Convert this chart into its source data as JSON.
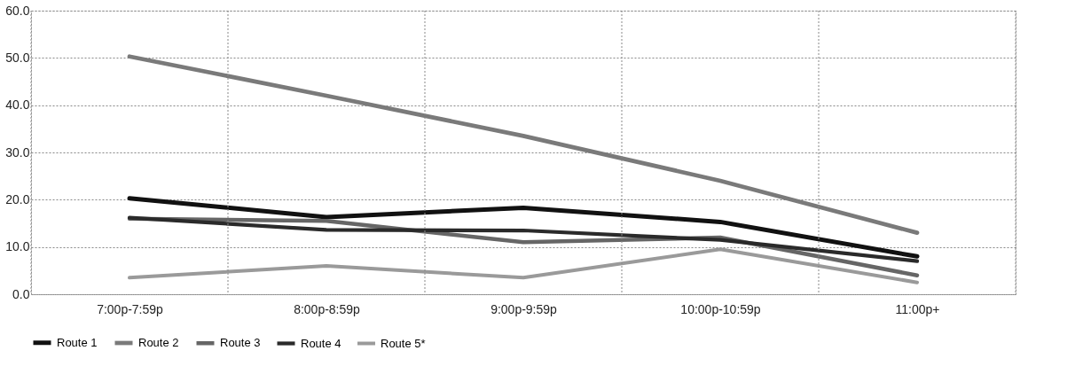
{
  "chart_data": {
    "type": "line",
    "categories": [
      "7:00p-7:59p",
      "8:00p-8:59p",
      "9:00p-9:59p",
      "10:00p-10:59p",
      "11:00p+"
    ],
    "series": [
      {
        "name": "Route 1",
        "color": "#111111",
        "values": [
          20.3,
          16.3,
          18.3,
          15.3,
          8.0
        ]
      },
      {
        "name": "Route 2",
        "color": "#7a7a7a",
        "values": [
          50.3,
          42.0,
          33.5,
          24.0,
          13.0
        ]
      },
      {
        "name": "Route 3",
        "color": "#666666",
        "values": [
          16.0,
          15.5,
          11.0,
          12.0,
          4.0
        ]
      },
      {
        "name": "Route 4",
        "color": "#2a2a2a",
        "values": [
          16.2,
          13.6,
          13.5,
          11.5,
          7.0
        ]
      },
      {
        "name": "Route 5*",
        "color": "#9a9a9a",
        "values": [
          3.5,
          6.0,
          3.5,
          9.5,
          2.5
        ]
      }
    ],
    "ylim": [
      0,
      60
    ],
    "yticks": [
      {
        "value": 0,
        "label": "0.0"
      },
      {
        "value": 10,
        "label": "10.0"
      },
      {
        "value": 20,
        "label": "20.0"
      },
      {
        "value": 30,
        "label": "30.0"
      },
      {
        "value": 40,
        "label": "40.0"
      },
      {
        "value": 50,
        "label": "50.0"
      },
      {
        "value": 60,
        "label": "60.0"
      }
    ],
    "grid": true,
    "legend": "bottom",
    "marker": "none",
    "line_style": "solid"
  }
}
